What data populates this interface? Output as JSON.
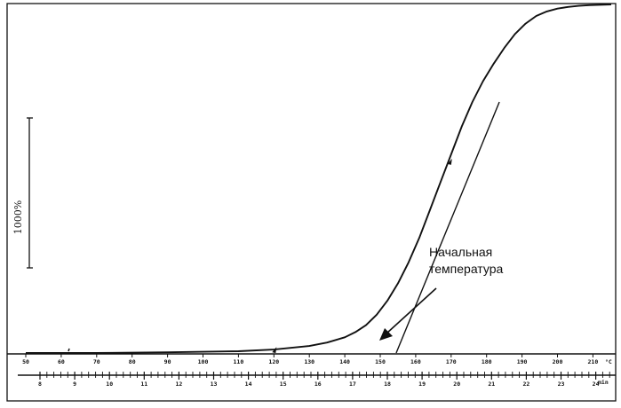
{
  "chart_data": {
    "type": "line",
    "title": "",
    "scale_bar_label": "1000%",
    "x_axis": {
      "unit": "°C",
      "ticks": [
        "50",
        "60",
        "70",
        "80",
        "90",
        "100",
        "110",
        "120",
        "130",
        "140",
        "150",
        "160",
        "170",
        "180",
        "190",
        "200",
        "210",
        "220"
      ]
    },
    "time_axis": {
      "unit": "min",
      "ticks": [
        "8",
        "9",
        "10",
        "11",
        "12",
        "13",
        "14",
        "15",
        "16",
        "17",
        "18",
        "19",
        "20",
        "21",
        "22",
        "23",
        "24",
        "25"
      ]
    },
    "series": [
      {
        "x": [
          50,
          70,
          90,
          110,
          120,
          130,
          135,
          140,
          143,
          146,
          149,
          152,
          155,
          158,
          161,
          164,
          167,
          170,
          173,
          176,
          179,
          182,
          185,
          188,
          191,
          194,
          197,
          200,
          203,
          206,
          209,
          212,
          215,
          218,
          221,
          225
        ],
        "y": [
          0,
          0,
          0.002,
          0.005,
          0.01,
          0.02,
          0.03,
          0.045,
          0.06,
          0.08,
          0.11,
          0.15,
          0.2,
          0.26,
          0.33,
          0.41,
          0.49,
          0.57,
          0.65,
          0.72,
          0.78,
          0.83,
          0.875,
          0.915,
          0.945,
          0.967,
          0.98,
          0.988,
          0.993,
          0.996,
          0.998,
          0.999,
          1,
          1,
          1,
          1
        ]
      }
    ],
    "tangent_line": {
      "x": [
        154.5,
        183.6
      ],
      "y": [
        0,
        0.72
      ]
    },
    "annotation": {
      "lines": [
        "Начальная",
        "температура"
      ],
      "points_to_x": 155
    }
  }
}
